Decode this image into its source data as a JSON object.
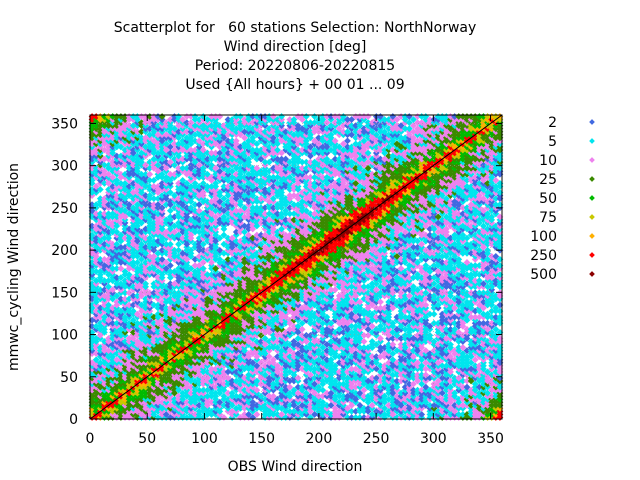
{
  "chart_data": {
    "type": "scatter",
    "title": [
      "Scatterplot for   60 stations Selection: NorthNorway",
      "Wind direction [deg]",
      "Period: 20220806-20220815",
      "Used {All hours} + 00 01 ... 09"
    ],
    "xlabel": "OBS Wind direction",
    "ylabel": "mmwc_cycling Wind direction",
    "xlim": [
      0,
      360
    ],
    "ylim": [
      0,
      360
    ],
    "xticks": [
      0,
      50,
      100,
      150,
      200,
      250,
      300,
      350
    ],
    "yticks": [
      0,
      50,
      100,
      150,
      200,
      250,
      300,
      350
    ],
    "grid": true,
    "diagonal": true,
    "legend_position": "right",
    "legend": [
      {
        "label": "2",
        "color": "#4169e1"
      },
      {
        "label": "5",
        "color": "#00e5ee"
      },
      {
        "label": "10",
        "color": "#ee82ee"
      },
      {
        "label": "25",
        "color": "#3a8a00"
      },
      {
        "label": "50",
        "color": "#00bb00"
      },
      {
        "label": "75",
        "color": "#c8c800"
      },
      {
        "label": "100",
        "color": "#ffb000"
      },
      {
        "label": "250",
        "color": "#ff0000"
      },
      {
        "label": "500",
        "color": "#8b0000"
      }
    ]
  }
}
